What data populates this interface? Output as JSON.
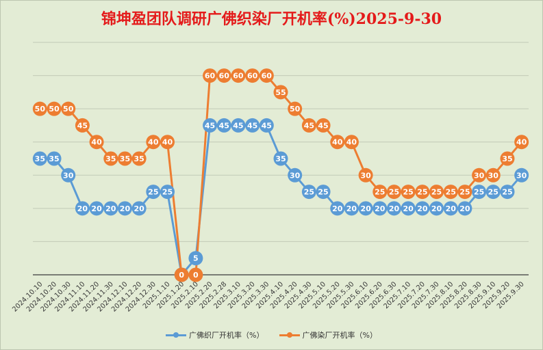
{
  "chart_data": {
    "type": "line",
    "title": "锦坤盈团队调研广佛织染厂开机率(%)2025-9-30",
    "categories": [
      "2024.10.10",
      "2024.10.20",
      "2024.10.30",
      "2024.11.10",
      "2024.11.20",
      "2024.11.30",
      "2024.12.10",
      "2024.12.20",
      "2024.12.30",
      "2025.1.10",
      "2025.1.20",
      "2025.2.10",
      "2025.2.20",
      "2025.2.28",
      "2025.3.10",
      "2025.3.20",
      "2025.3.30",
      "2025.4.10",
      "2025.4.20",
      "2025.4.30",
      "2025.5.10",
      "2025.5.20",
      "2025.5.30",
      "2025.6.10",
      "2025.6.20",
      "2025.6.30",
      "2025.7.10",
      "2025.7.20",
      "2025.7.30",
      "2025.8.10",
      "2025.8.20",
      "2025.8.30",
      "2025.9.10",
      "2025.9.20",
      "2025.9.30"
    ],
    "series": [
      {
        "name": "广佛织厂开机率（%）",
        "color": "#5b9bd5",
        "values": [
          35,
          35,
          30,
          20,
          20,
          20,
          20,
          20,
          25,
          25,
          0,
          5,
          45,
          45,
          45,
          45,
          45,
          35,
          30,
          25,
          25,
          20,
          20,
          20,
          20,
          20,
          20,
          20,
          20,
          20,
          20,
          25,
          25,
          25,
          30
        ]
      },
      {
        "name": "广佛染厂开机率（%）",
        "color": "#ed7d31",
        "values": [
          50,
          50,
          50,
          45,
          40,
          35,
          35,
          35,
          40,
          40,
          0,
          0,
          60,
          60,
          60,
          60,
          60,
          55,
          50,
          45,
          45,
          40,
          40,
          30,
          25,
          25,
          25,
          25,
          25,
          25,
          25,
          30,
          30,
          35,
          40
        ]
      }
    ],
    "ylim": [
      0,
      70
    ],
    "grid": true,
    "legend": "bottom"
  }
}
